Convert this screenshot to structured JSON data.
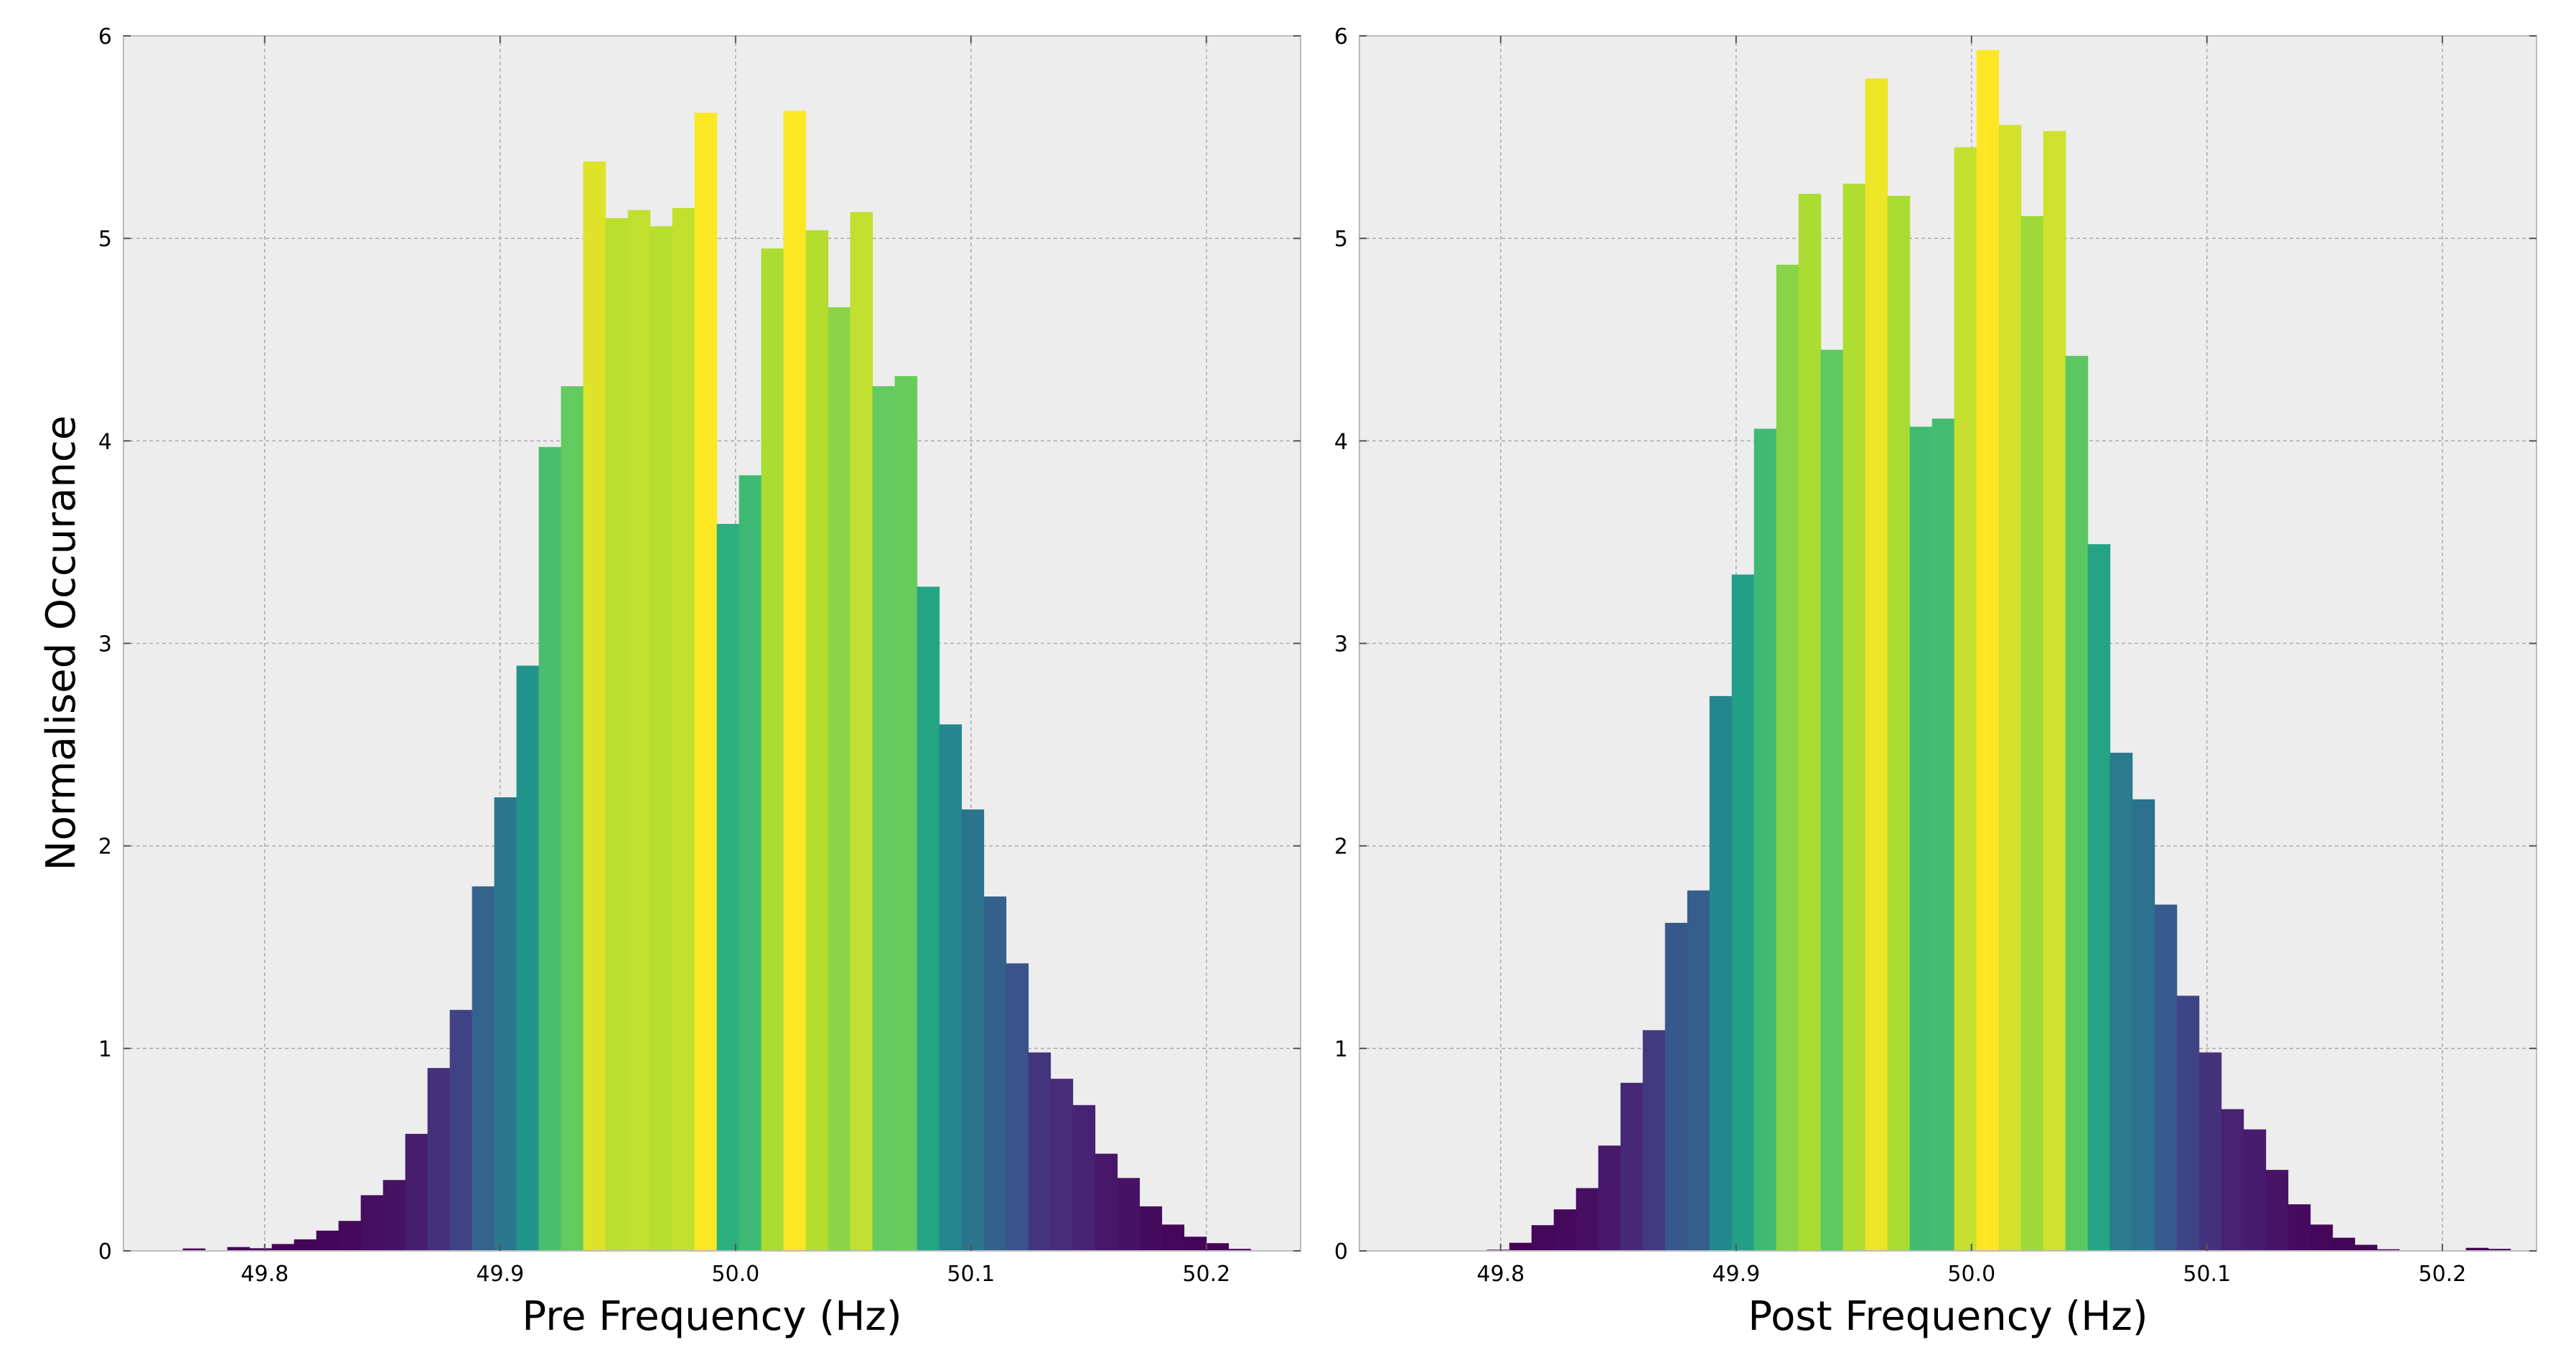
{
  "figure": {
    "ylabel": "Normalised Occurance",
    "background": "#ffffff",
    "axes_background": "#ededed",
    "grid_color": "#b0b0b0",
    "spine_color": "#bcbcbc",
    "colormap": "viridis"
  },
  "chart_data": [
    {
      "type": "bar",
      "name": "pre",
      "xlabel": "Pre Frequency (Hz)",
      "ylabel": "Normalised Occurance",
      "xlim": [
        49.74,
        50.24
      ],
      "ylim": [
        0,
        6
      ],
      "xticks": [
        49.8,
        49.9,
        50.0,
        50.1,
        50.2
      ],
      "xtick_labels": [
        "49.8",
        "49.9",
        "50.0",
        "50.1",
        "50.2"
      ],
      "yticks": [
        0,
        1,
        2,
        3,
        4,
        5,
        6
      ],
      "ytick_labels": [
        "0",
        "1",
        "2",
        "3",
        "4",
        "5",
        "6"
      ],
      "grid": true,
      "bin_start": 49.7652,
      "bin_width": 0.00945,
      "values": [
        0.012,
        0.0,
        0.019,
        0.013,
        0.034,
        0.057,
        0.1,
        0.148,
        0.275,
        0.35,
        0.578,
        0.903,
        1.19,
        1.8,
        2.24,
        2.89,
        3.97,
        4.27,
        5.38,
        5.1,
        5.14,
        5.06,
        5.15,
        5.62,
        3.59,
        3.83,
        4.95,
        5.63,
        5.04,
        4.66,
        5.13,
        4.27,
        4.32,
        3.28,
        2.6,
        2.18,
        1.75,
        1.42,
        0.98,
        0.85,
        0.72,
        0.48,
        0.36,
        0.22,
        0.13,
        0.07,
        0.038,
        0.01
      ]
    },
    {
      "type": "bar",
      "name": "post",
      "xlabel": "Post Frequency (Hz)",
      "ylabel": "",
      "xlim": [
        49.74,
        50.24
      ],
      "ylim": [
        0,
        6
      ],
      "xticks": [
        49.8,
        49.9,
        50.0,
        50.1,
        50.2
      ],
      "xtick_labels": [
        "49.8",
        "49.9",
        "50.0",
        "50.1",
        "50.2"
      ],
      "yticks": [
        0,
        1,
        2,
        3,
        4,
        5,
        6
      ],
      "ytick_labels": [
        "0",
        "1",
        "2",
        "3",
        "4",
        "5",
        "6"
      ],
      "grid": true,
      "bin_start": 49.7942,
      "bin_width": 0.00945,
      "values": [
        0.006,
        0.04,
        0.127,
        0.205,
        0.31,
        0.52,
        0.83,
        1.09,
        1.62,
        1.78,
        2.74,
        3.34,
        4.06,
        4.87,
        5.22,
        4.45,
        5.27,
        5.79,
        5.21,
        4.07,
        4.11,
        5.45,
        5.93,
        5.56,
        5.11,
        5.53,
        4.42,
        3.49,
        2.46,
        2.23,
        1.71,
        1.26,
        0.98,
        0.7,
        0.6,
        0.4,
        0.23,
        0.13,
        0.065,
        0.03,
        0.008,
        0.0,
        0.0,
        0.0,
        0.015,
        0.01
      ]
    }
  ]
}
